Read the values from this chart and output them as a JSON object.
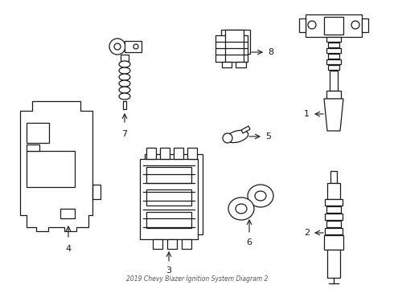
{
  "title": "2019 Chevy Blazer Ignition System Diagram 2",
  "bg_color": "#ffffff",
  "line_color": "#1a1a1a",
  "fig_width": 4.9,
  "fig_height": 3.6,
  "dpi": 100
}
